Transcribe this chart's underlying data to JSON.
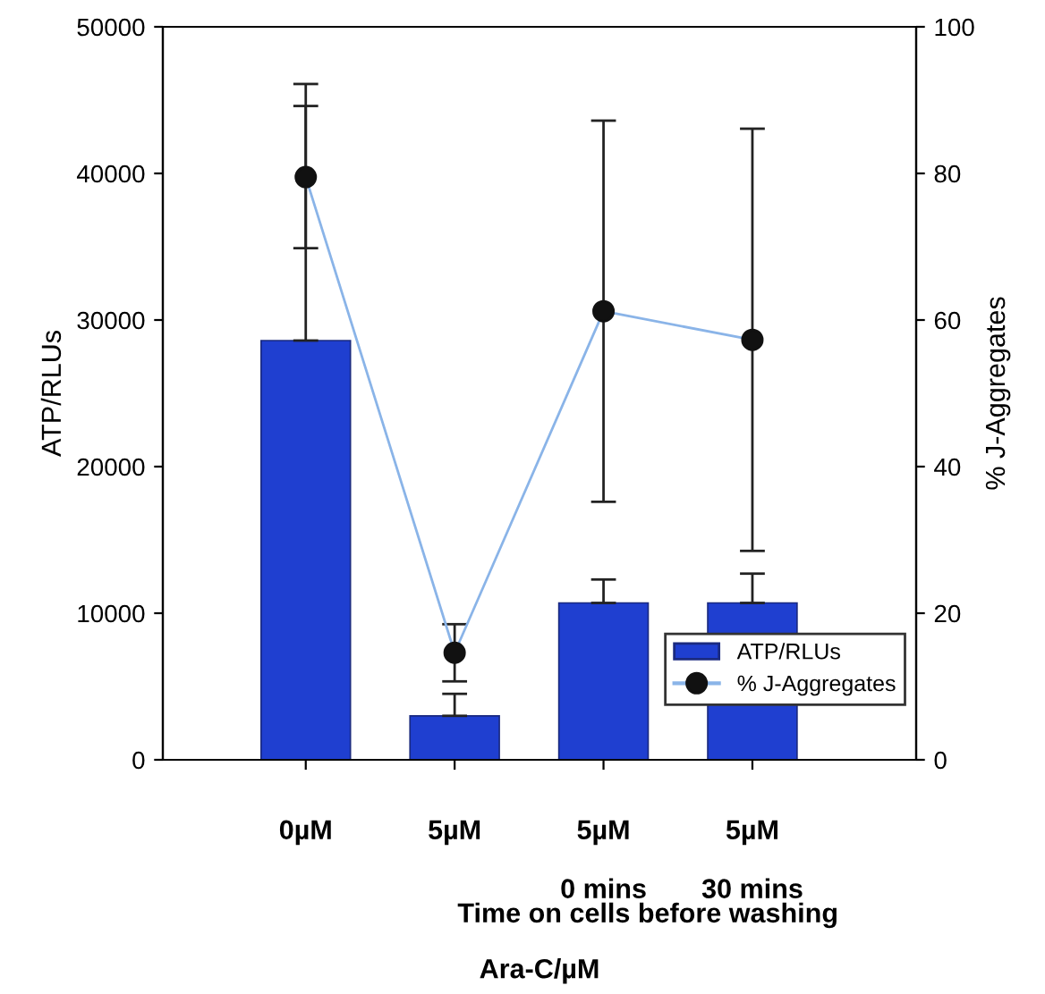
{
  "chart_data": {
    "type": "bar",
    "xlabel": "Ara-C/µM",
    "ylabel": "ATP/RLUs",
    "y2label": "% J-Aggregates",
    "categories": [
      "0µM",
      "5µM",
      "5µM\n\n0 mins",
      "5µM\n\n30 mins"
    ],
    "series": [
      {
        "name": "ATP/RLUs",
        "color": "#1f3fd0",
        "values": [
          28600,
          3000,
          10700,
          10700
        ],
        "errors": [
          [
            28600,
            46100
          ],
          [
            3000,
            4500
          ],
          [
            10700,
            12300
          ],
          [
            10700,
            12700
          ]
        ]
      },
      {
        "name": "% J-Aggregates",
        "type": "line",
        "axis": "y2",
        "color": "#8ab4e8",
        "marker": "circle",
        "values": [
          79.5,
          14.6,
          61.2,
          57.3
        ],
        "errors": [
          9.7,
          3.9,
          26,
          28.8
        ]
      }
    ],
    "ylim": [
      0,
      50000
    ],
    "yticks": [
      0,
      10000,
      20000,
      30000,
      40000,
      50000
    ],
    "y2lim": [
      0,
      100
    ],
    "y2ticks": [
      0,
      20,
      40,
      60,
      80,
      100
    ],
    "legend": "bottom right",
    "grid": false,
    "annotations": [
      "Time on cells before washing"
    ]
  }
}
